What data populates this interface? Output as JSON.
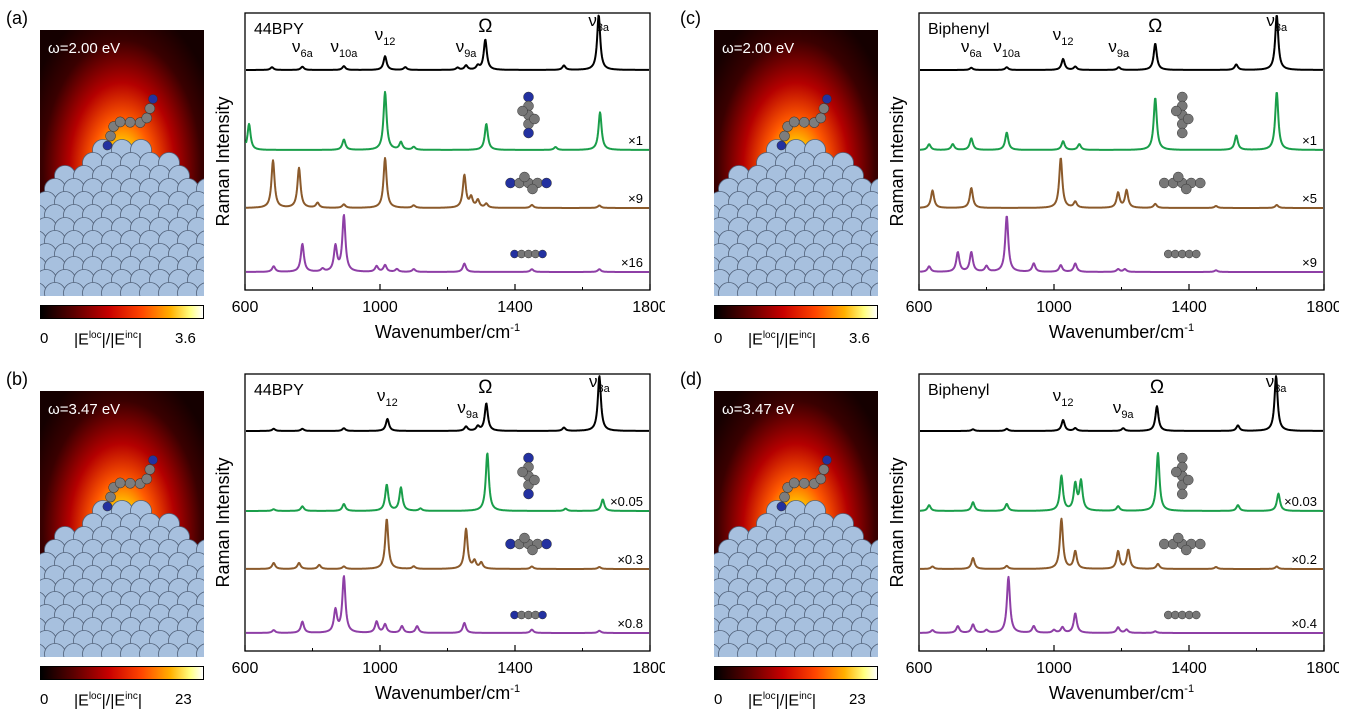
{
  "colors": {
    "trace_top": "#000000",
    "trace_1": "#1a9e4a",
    "trace_2": "#8b5a2b",
    "trace_3": "#8e3fa6",
    "metal": "#a7c0de"
  },
  "colorbar_labels": {
    "title_E": "|E",
    "title_loc": "loc",
    "title_mid": "|/|E",
    "title_inc": "inc",
    "title_end": "|"
  },
  "panels": [
    {
      "letter": "(a)",
      "freq": "ω=2.00 eV",
      "cb_min": "0",
      "cb_max": "3.6",
      "molecule_tilted": true
    },
    {
      "letter": "(c)",
      "freq": "ω=2.00 eV",
      "cb_min": "0",
      "cb_max": "3.6",
      "molecule_tilted": true
    },
    {
      "letter": "(b)",
      "freq": "ω=3.47 eV",
      "cb_min": "0",
      "cb_max": "23",
      "molecule_tilted": true
    },
    {
      "letter": "(d)",
      "freq": "ω=3.47 eV",
      "cb_min": "0",
      "cb_max": "23",
      "molecule_tilted": true
    }
  ],
  "chart_data": [
    {
      "type": "line",
      "panel": "(a)",
      "molecule": "44BPY",
      "xlabel": "Wavenumber/cm",
      "xlabel_sup": "-1",
      "ylabel": "Raman Intensity",
      "xlim": [
        600,
        1800
      ],
      "xticks": [
        "600",
        "1000",
        "1400",
        "1800"
      ],
      "xtick_values": [
        600,
        1000,
        1400,
        1800
      ],
      "mode_labels": [
        {
          "base": "ν",
          "sub": "6a",
          "x": 770,
          "row": 0
        },
        {
          "base": "ν",
          "sub": "10a",
          "x": 893,
          "row": 0
        },
        {
          "base": "ν",
          "sub": "12",
          "x": 1015,
          "row": 1
        },
        {
          "base": "ν",
          "sub": "9a",
          "x": 1255,
          "row": 0
        },
        {
          "base": "Ω",
          "sub": "",
          "x": 1312,
          "row": 2
        },
        {
          "base": "ν",
          "sub": "8a",
          "x": 1648,
          "row": 3
        }
      ],
      "series": [
        {
          "scale": "",
          "orientation": "none",
          "peaks": [
            [
              680,
              0.05
            ],
            [
              770,
              0.06
            ],
            [
              893,
              0.07
            ],
            [
              1015,
              0.25
            ],
            [
              1075,
              0.05
            ],
            [
              1230,
              0.04
            ],
            [
              1255,
              0.08
            ],
            [
              1290,
              0.07
            ],
            [
              1312,
              0.55
            ],
            [
              1545,
              0.08
            ],
            [
              1648,
              1.0
            ]
          ]
        },
        {
          "scale": "×1",
          "orientation": "vertical",
          "peaks": [
            [
              612,
              0.45
            ],
            [
              893,
              0.18
            ],
            [
              1015,
              1.0
            ],
            [
              1062,
              0.13
            ],
            [
              1100,
              0.05
            ],
            [
              1315,
              0.45
            ],
            [
              1520,
              0.05
            ],
            [
              1652,
              0.65
            ]
          ]
        },
        {
          "scale": "×9",
          "orientation": "horizontal",
          "peaks": [
            [
              683,
              0.95
            ],
            [
              760,
              0.8
            ],
            [
              815,
              0.1
            ],
            [
              893,
              0.07
            ],
            [
              1015,
              1.0
            ],
            [
              1100,
              0.05
            ],
            [
              1250,
              0.65
            ],
            [
              1270,
              0.2
            ],
            [
              1290,
              0.15
            ],
            [
              1315,
              0.08
            ],
            [
              1450,
              0.06
            ],
            [
              1650,
              0.05
            ]
          ]
        },
        {
          "scale": "×16",
          "orientation": "flat",
          "peaks": [
            [
              685,
              0.1
            ],
            [
              770,
              0.5
            ],
            [
              830,
              0.05
            ],
            [
              868,
              0.45
            ],
            [
              893,
              1.0
            ],
            [
              990,
              0.1
            ],
            [
              1015,
              0.12
            ],
            [
              1050,
              0.05
            ],
            [
              1100,
              0.05
            ],
            [
              1250,
              0.15
            ],
            [
              1450,
              0.05
            ],
            [
              1650,
              0.05
            ]
          ]
        }
      ]
    },
    {
      "type": "line",
      "panel": "(c)",
      "molecule": "Biphenyl",
      "xlabel": "Wavenumber/cm",
      "xlabel_sup": "-1",
      "ylabel": "Raman Intensity",
      "xlim": [
        600,
        1800
      ],
      "xticks": [
        "600",
        "1000",
        "1400",
        "1800"
      ],
      "xtick_values": [
        600,
        1000,
        1400,
        1800
      ],
      "mode_labels": [
        {
          "base": "ν",
          "sub": "6a",
          "x": 755,
          "row": 0
        },
        {
          "base": "ν",
          "sub": "10a",
          "x": 860,
          "row": 0
        },
        {
          "base": "ν",
          "sub": "12",
          "x": 1027,
          "row": 1
        },
        {
          "base": "ν",
          "sub": "9a",
          "x": 1192,
          "row": 0
        },
        {
          "base": "Ω",
          "sub": "",
          "x": 1300,
          "row": 2
        },
        {
          "base": "ν",
          "sub": "8a",
          "x": 1660,
          "row": 3
        }
      ],
      "series": [
        {
          "scale": "",
          "orientation": "none",
          "peaks": [
            [
              755,
              0.04
            ],
            [
              860,
              0.05
            ],
            [
              1027,
              0.2
            ],
            [
              1063,
              0.06
            ],
            [
              1192,
              0.05
            ],
            [
              1300,
              0.48
            ],
            [
              1540,
              0.1
            ],
            [
              1660,
              1.0
            ]
          ]
        },
        {
          "scale": "×1",
          "orientation": "vertical",
          "peaks": [
            [
              630,
              0.1
            ],
            [
              700,
              0.1
            ],
            [
              755,
              0.2
            ],
            [
              860,
              0.3
            ],
            [
              1027,
              0.15
            ],
            [
              1075,
              0.1
            ],
            [
              1300,
              0.9
            ],
            [
              1540,
              0.25
            ],
            [
              1660,
              1.0
            ]
          ]
        },
        {
          "scale": "×5",
          "orientation": "horizontal",
          "peaks": [
            [
              640,
              0.35
            ],
            [
              755,
              0.4
            ],
            [
              1020,
              1.0
            ],
            [
              1063,
              0.12
            ],
            [
              1190,
              0.3
            ],
            [
              1215,
              0.35
            ],
            [
              1300,
              0.08
            ],
            [
              1480,
              0.04
            ],
            [
              1660,
              0.06
            ]
          ]
        },
        {
          "scale": "×9",
          "orientation": "flat",
          "peaks": [
            [
              630,
              0.1
            ],
            [
              715,
              0.35
            ],
            [
              755,
              0.35
            ],
            [
              800,
              0.1
            ],
            [
              860,
              1.0
            ],
            [
              940,
              0.15
            ],
            [
              1020,
              0.12
            ],
            [
              1063,
              0.15
            ],
            [
              1190,
              0.05
            ],
            [
              1210,
              0.05
            ],
            [
              1480,
              0.03
            ]
          ]
        }
      ]
    },
    {
      "type": "line",
      "panel": "(b)",
      "molecule": "44BPY",
      "xlabel": "Wavenumber/cm",
      "xlabel_sup": "-1",
      "ylabel": "Raman Intensity",
      "xlim": [
        600,
        1800
      ],
      "xticks": [
        "600",
        "1000",
        "1400",
        "1800"
      ],
      "xtick_values": [
        600,
        1000,
        1400,
        1800
      ],
      "mode_labels": [
        {
          "base": "ν",
          "sub": "12",
          "x": 1022,
          "row": 1
        },
        {
          "base": "ν",
          "sub": "9a",
          "x": 1260,
          "row": 0
        },
        {
          "base": "Ω",
          "sub": "",
          "x": 1312,
          "row": 2
        },
        {
          "base": "ν",
          "sub": "8a",
          "x": 1650,
          "row": 3
        }
      ],
      "series": [
        {
          "scale": "",
          "orientation": "none",
          "peaks": [
            [
              685,
              0.04
            ],
            [
              770,
              0.04
            ],
            [
              893,
              0.05
            ],
            [
              1022,
              0.22
            ],
            [
              1255,
              0.08
            ],
            [
              1290,
              0.08
            ],
            [
              1315,
              0.5
            ],
            [
              1545,
              0.06
            ],
            [
              1650,
              1.0
            ]
          ]
        },
        {
          "scale": "×0.05",
          "orientation": "vertical",
          "peaks": [
            [
              685,
              0.03
            ],
            [
              770,
              0.08
            ],
            [
              893,
              0.12
            ],
            [
              1020,
              0.45
            ],
            [
              1062,
              0.4
            ],
            [
              1120,
              0.04
            ],
            [
              1318,
              1.0
            ],
            [
              1550,
              0.04
            ],
            [
              1660,
              0.2
            ]
          ]
        },
        {
          "scale": "×0.3",
          "orientation": "horizontal",
          "peaks": [
            [
              685,
              0.12
            ],
            [
              760,
              0.12
            ],
            [
              820,
              0.08
            ],
            [
              893,
              0.05
            ],
            [
              1020,
              1.0
            ],
            [
              1100,
              0.05
            ],
            [
              1255,
              0.8
            ],
            [
              1280,
              0.15
            ],
            [
              1300,
              0.12
            ],
            [
              1450,
              0.05
            ],
            [
              1650,
              0.04
            ]
          ]
        },
        {
          "scale": "×0.8",
          "orientation": "flat",
          "peaks": [
            [
              685,
              0.05
            ],
            [
              770,
              0.2
            ],
            [
              868,
              0.4
            ],
            [
              893,
              1.0
            ],
            [
              990,
              0.2
            ],
            [
              1015,
              0.15
            ],
            [
              1065,
              0.12
            ],
            [
              1110,
              0.12
            ],
            [
              1250,
              0.18
            ],
            [
              1450,
              0.06
            ],
            [
              1650,
              0.04
            ]
          ]
        }
      ]
    },
    {
      "type": "line",
      "panel": "(d)",
      "molecule": "Biphenyl",
      "xlabel": "Wavenumber/cm",
      "xlabel_sup": "-1",
      "ylabel": "Raman Intensity",
      "xlim": [
        600,
        1800
      ],
      "xticks": [
        "600",
        "1000",
        "1400",
        "1800"
      ],
      "xtick_values": [
        600,
        1000,
        1400,
        1800
      ],
      "mode_labels": [
        {
          "base": "ν",
          "sub": "12",
          "x": 1027,
          "row": 1
        },
        {
          "base": "ν",
          "sub": "9a",
          "x": 1205,
          "row": 0
        },
        {
          "base": "Ω",
          "sub": "",
          "x": 1305,
          "row": 2
        },
        {
          "base": "ν",
          "sub": "8a",
          "x": 1658,
          "row": 3
        }
      ],
      "series": [
        {
          "scale": "",
          "orientation": "none",
          "peaks": [
            [
              760,
              0.03
            ],
            [
              860,
              0.04
            ],
            [
              1027,
              0.2
            ],
            [
              1063,
              0.05
            ],
            [
              1205,
              0.05
            ],
            [
              1305,
              0.45
            ],
            [
              1545,
              0.1
            ],
            [
              1658,
              1.0
            ]
          ]
        },
        {
          "scale": "×0.03",
          "orientation": "vertical",
          "peaks": [
            [
              630,
              0.1
            ],
            [
              760,
              0.15
            ],
            [
              860,
              0.12
            ],
            [
              1022,
              0.6
            ],
            [
              1063,
              0.45
            ],
            [
              1080,
              0.5
            ],
            [
              1190,
              0.08
            ],
            [
              1308,
              1.0
            ],
            [
              1545,
              0.1
            ],
            [
              1665,
              0.3
            ]
          ]
        },
        {
          "scale": "×0.2",
          "orientation": "horizontal",
          "peaks": [
            [
              640,
              0.05
            ],
            [
              760,
              0.22
            ],
            [
              860,
              0.06
            ],
            [
              1022,
              1.0
            ],
            [
              1063,
              0.35
            ],
            [
              1190,
              0.35
            ],
            [
              1220,
              0.38
            ],
            [
              1308,
              0.1
            ],
            [
              1480,
              0.04
            ],
            [
              1660,
              0.05
            ]
          ]
        },
        {
          "scale": "×0.4",
          "orientation": "flat",
          "peaks": [
            [
              640,
              0.05
            ],
            [
              715,
              0.12
            ],
            [
              760,
              0.15
            ],
            [
              800,
              0.05
            ],
            [
              865,
              1.0
            ],
            [
              940,
              0.12
            ],
            [
              1000,
              0.05
            ],
            [
              1025,
              0.1
            ],
            [
              1063,
              0.35
            ],
            [
              1190,
              0.1
            ],
            [
              1215,
              0.06
            ],
            [
              1300,
              0.03
            ]
          ]
        }
      ]
    }
  ]
}
